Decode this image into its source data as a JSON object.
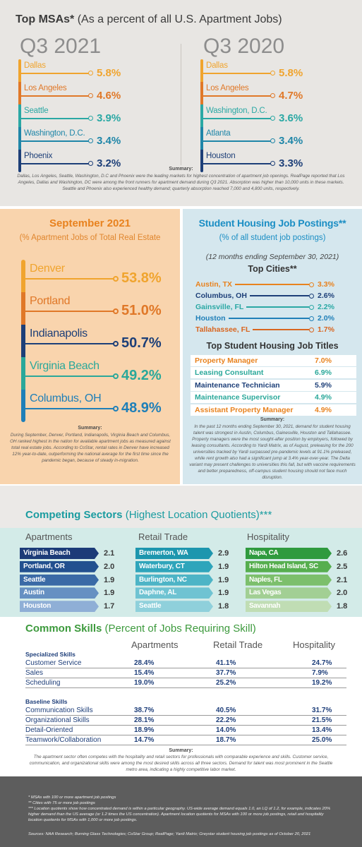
{
  "top_msas": {
    "title_bold": "Top MSAs*",
    "title_rest": " (As a percent of all U.S. Apartment Jobs)",
    "columns": [
      {
        "period": "Q3 2021",
        "items": [
          {
            "label": "Dallas",
            "value": "5.8%",
            "color": "#f0a42e"
          },
          {
            "label": "Los Angeles",
            "value": "4.6%",
            "color": "#e07828"
          },
          {
            "label": "Seattle",
            "value": "3.9%",
            "color": "#2aa8a4"
          },
          {
            "label": "Washington, D.C.",
            "value": "3.4%",
            "color": "#1f86a8"
          },
          {
            "label": "Phoenix",
            "value": "3.2%",
            "color": "#1d3f78"
          }
        ]
      },
      {
        "period": "Q3 2020",
        "items": [
          {
            "label": "Dallas",
            "value": "5.8%",
            "color": "#f0a42e"
          },
          {
            "label": "Los Angeles",
            "value": "4.7%",
            "color": "#e07828"
          },
          {
            "label": "Washington, D.C.",
            "value": "3.6%",
            "color": "#2aa8a4"
          },
          {
            "label": "Atlanta",
            "value": "3.4%",
            "color": "#1f86a8"
          },
          {
            "label": "Houston",
            "value": "3.3%",
            "color": "#1d3f78"
          }
        ]
      }
    ],
    "summary_label": "Summary:",
    "summary": "Dallas, Los Angeles, Seattle, Washington, D.C and Phoenix were the leading markets for highest concentration of apartment job openings. RealPage reported that Los Angeles, Dallas and Washington, DC were among the front runners for apartment demand during Q3 2021. Absorption was higher than 10,000 units in these markets. Seattle and Phoenix also experienced healthy demand; quarterly absorption reached 7,000 and 4,800 units, respectively."
  },
  "september_2021": {
    "title": "September 2021",
    "subtitle": "(% Apartment Jobs of Total Real Estate",
    "items": [
      {
        "label": "Denver",
        "value": "53.8%",
        "color": "#f0a42e"
      },
      {
        "label": "Portland",
        "value": "51.0%",
        "color": "#e07828"
      },
      {
        "label": "Indianapolis",
        "value": "50.7%",
        "color": "#1d3f78"
      },
      {
        "label": "Virginia Beach",
        "value": "49.2%",
        "color": "#2aa89a"
      },
      {
        "label": "Columbus, OH",
        "value": "48.9%",
        "color": "#1f7fb8"
      }
    ],
    "summary_label": "Summary:",
    "summary": "During September, Denver, Portland, Indianapolis, Virginia Beach and Columbus, OH ranked highest in the nation for available apartment jobs as measured against total real estate jobs. According to CoStar, rental rates in Denver have increased 12% year-to-date, outperforming the national average for the first time since the pandemic began, because of steady in-migration."
  },
  "student_housing": {
    "title": "Student Housing Job Postings**",
    "subtitle": "(% of all student job postings)",
    "period": "(12 months ending September 30, 2021)",
    "cities_heading": "Top Cities**",
    "cities": [
      {
        "label": "Austin, TX",
        "value": "3.3%",
        "color": "#e8821e"
      },
      {
        "label": "Columbus, OH",
        "value": "2.6%",
        "color": "#1d3f78"
      },
      {
        "label": "Gainsville, FL",
        "value": "2.2%",
        "color": "#2aa8a4"
      },
      {
        "label": "Houston",
        "value": "2.0%",
        "color": "#1f7fb8"
      },
      {
        "label": "Tallahassee, FL",
        "value": "1.7%",
        "color": "#d9651f"
      }
    ],
    "titles_heading": "Top Student Housing Job Titles",
    "job_titles": [
      {
        "label": "Property Manager",
        "value": "7.0%",
        "color": "#e8821e"
      },
      {
        "label": "Leasing Consultant",
        "value": "6.9%",
        "color": "#2aa89a"
      },
      {
        "label": "Maintenance Technician",
        "value": "5.9%",
        "color": "#1d3f78"
      },
      {
        "label": "Maintenance Supervisor",
        "value": "4.9%",
        "color": "#2aa89a"
      },
      {
        "label": "Assistant Property Manager",
        "value": "4.9%",
        "color": "#e8821e"
      }
    ],
    "summary_label": "Summary:",
    "summary": "In the past 12 months ending September 30, 2021, demand for student housing talent was strongest in Austin, Columbus, Gainesville, Houston and Tallahassee. Property managers were the most sought-after position by employers, followed by leasing consultants. According to Yardi Matrix, as of August, preleasing for the 200 universities tracked by Yardi surpassed pre-pandemic levels at 91.1% preleased, while rent growth also had a significant jump at 3.4% year-over-year. The Delta variant may present challenges to universities this fall, but with vaccine requirements and better preparedness, off-campus student housing should not face much disruption."
  },
  "competing_sectors": {
    "title_bold": "Competing Sectors",
    "title_rest": " (Highest Location Quotients)***",
    "sectors": [
      {
        "name": "Apartments",
        "items": [
          {
            "label": "Virginia Beach",
            "value": "2.1",
            "color": "#1c3b78"
          },
          {
            "label": "Portland, OR",
            "value": "2.0",
            "color": "#22508f"
          },
          {
            "label": "Seattle",
            "value": "1.9",
            "color": "#3a6aa6"
          },
          {
            "label": "Austin",
            "value": "1.9",
            "color": "#6690c2"
          },
          {
            "label": "Houston",
            "value": "1.7",
            "color": "#8fafd6"
          }
        ]
      },
      {
        "name": "Retail Trade",
        "items": [
          {
            "label": "Bremerton, WA",
            "value": "2.9",
            "color": "#1d96ae"
          },
          {
            "label": "Waterbury, CT",
            "value": "1.9",
            "color": "#2ea5bb"
          },
          {
            "label": "Burlington, NC",
            "value": "1.9",
            "color": "#4db4c6"
          },
          {
            "label": "Daphne, AL",
            "value": "1.9",
            "color": "#6fc3d2"
          },
          {
            "label": "Seattle",
            "value": "1.8",
            "color": "#8fd0db"
          }
        ]
      },
      {
        "name": "Hospitality",
        "items": [
          {
            "label": "Napa, CA",
            "value": "2.6",
            "color": "#2f9a3e"
          },
          {
            "label": "Hilton Head Island, SC",
            "value": "2.5",
            "color": "#56ae4f"
          },
          {
            "label": "Naples, FL",
            "value": "2.1",
            "color": "#7cbf6c"
          },
          {
            "label": "Las Vegas",
            "value": "2.0",
            "color": "#a2cf94"
          },
          {
            "label": "Savannah",
            "value": "1.8",
            "color": "#c0ddb4"
          }
        ]
      }
    ]
  },
  "common_skills": {
    "title_bold": "Common Skills",
    "title_rest": " (Percent of Jobs Requiring Skill)",
    "columns": [
      "Apartments",
      "Retail Trade",
      "Hospitality"
    ],
    "groups": [
      {
        "name": "Specialized Skills",
        "rows": [
          {
            "skill": "Customer Service",
            "values": [
              "28.4%",
              "41.1%",
              "24.7%"
            ]
          },
          {
            "skill": "Sales",
            "values": [
              "15.4%",
              "37.7%",
              "7.9%"
            ]
          },
          {
            "skill": "Scheduling",
            "values": [
              "19.0%",
              "25.2%",
              "19.2%"
            ]
          }
        ]
      },
      {
        "name": "Baseline Skills",
        "rows": [
          {
            "skill": "Communication Skills",
            "values": [
              "38.7%",
              "40.5%",
              "31.7%"
            ]
          },
          {
            "skill": "Organizational Skills",
            "values": [
              "28.1%",
              "22.2%",
              "21.5%"
            ]
          },
          {
            "skill": "Detail-Oriented",
            "values": [
              "18.9%",
              "14.0%",
              "13.4%"
            ]
          },
          {
            "skill": "Teamwork/Collaboration",
            "values": [
              "14.7%",
              "18.7%",
              "25.0%"
            ]
          }
        ]
      }
    ],
    "summary_label": "Summary:",
    "summary": "The apartment sector often competes with the hospitality and retail sectors for professionals with comparable experience and skills. Customer service, communication, and organizational skills were among the most desired skills across all three sectors. Demand for talent was most prominent in the Seattle metro area, indicating a highly competitive labor market."
  },
  "footnotes": {
    "notes": [
      "* MSAs with 100 or more apartment job postings",
      "** Cities with 75 or more job postings",
      "*** Location quotients show how concentrated demand is within a particular geography. US-wide average demand equals 1.0, an LQ of 1.2, for example, indicates 20% higher demand than the US average (or 1.2 times the US concentration). Apartment location quotients for MSAs with 100 or more job postings, retail and hospitality location quotients for MSAs with 1,000 or more job postings."
    ],
    "sources": "Sources: NAA Research; Burning Glass Technologies; CoStar Group; RealPage; Yardi Matrix; Greystar student housing job postings as of October 20, 2021"
  }
}
